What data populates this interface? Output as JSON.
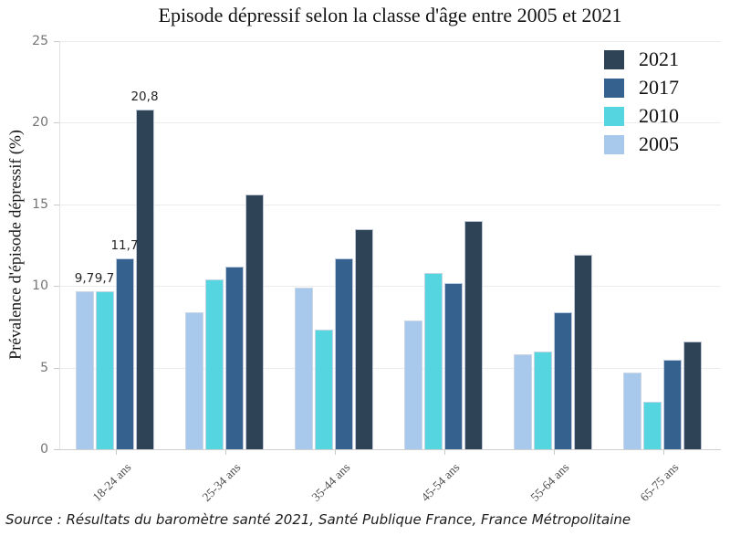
{
  "chart_data": {
    "type": "bar",
    "title": "Episode dépressif selon la classe d'âge entre 2005 et 2021",
    "ylabel": "Prévalence d'épisode dépressif (%)",
    "xlabel": "",
    "ylim": [
      0,
      25
    ],
    "yticks": [
      0,
      5,
      10,
      15,
      20,
      25
    ],
    "grid": true,
    "legend_position": "top-right-inside",
    "categories": [
      "18-24 ans",
      "25-34 ans",
      "35-44 ans",
      "45-54 ans",
      "55-64 ans",
      "65-75 ans"
    ],
    "series": [
      {
        "name": "2005",
        "color": "#a8c8ec",
        "values": [
          9.7,
          8.4,
          9.9,
          7.9,
          5.8,
          4.7
        ]
      },
      {
        "name": "2010",
        "color": "#54d5e0",
        "values": [
          9.7,
          10.4,
          7.3,
          10.8,
          6.0,
          2.9
        ]
      },
      {
        "name": "2017",
        "color": "#35618e",
        "values": [
          11.7,
          11.2,
          11.7,
          10.2,
          8.4,
          5.5
        ]
      },
      {
        "name": "2021",
        "color": "#2e4355",
        "values": [
          20.8,
          15.6,
          13.5,
          14.0,
          11.9,
          6.6
        ]
      }
    ],
    "legend_order": [
      "2021",
      "2017",
      "2010",
      "2005"
    ],
    "bar_labels": {
      "category": "18-24 ans",
      "values": [
        "9,7",
        "9,7",
        "11,7",
        "20,8"
      ]
    }
  },
  "source": "Source : Résultats du baromètre santé 2021, Santé Publique France, France Métropolitaine"
}
